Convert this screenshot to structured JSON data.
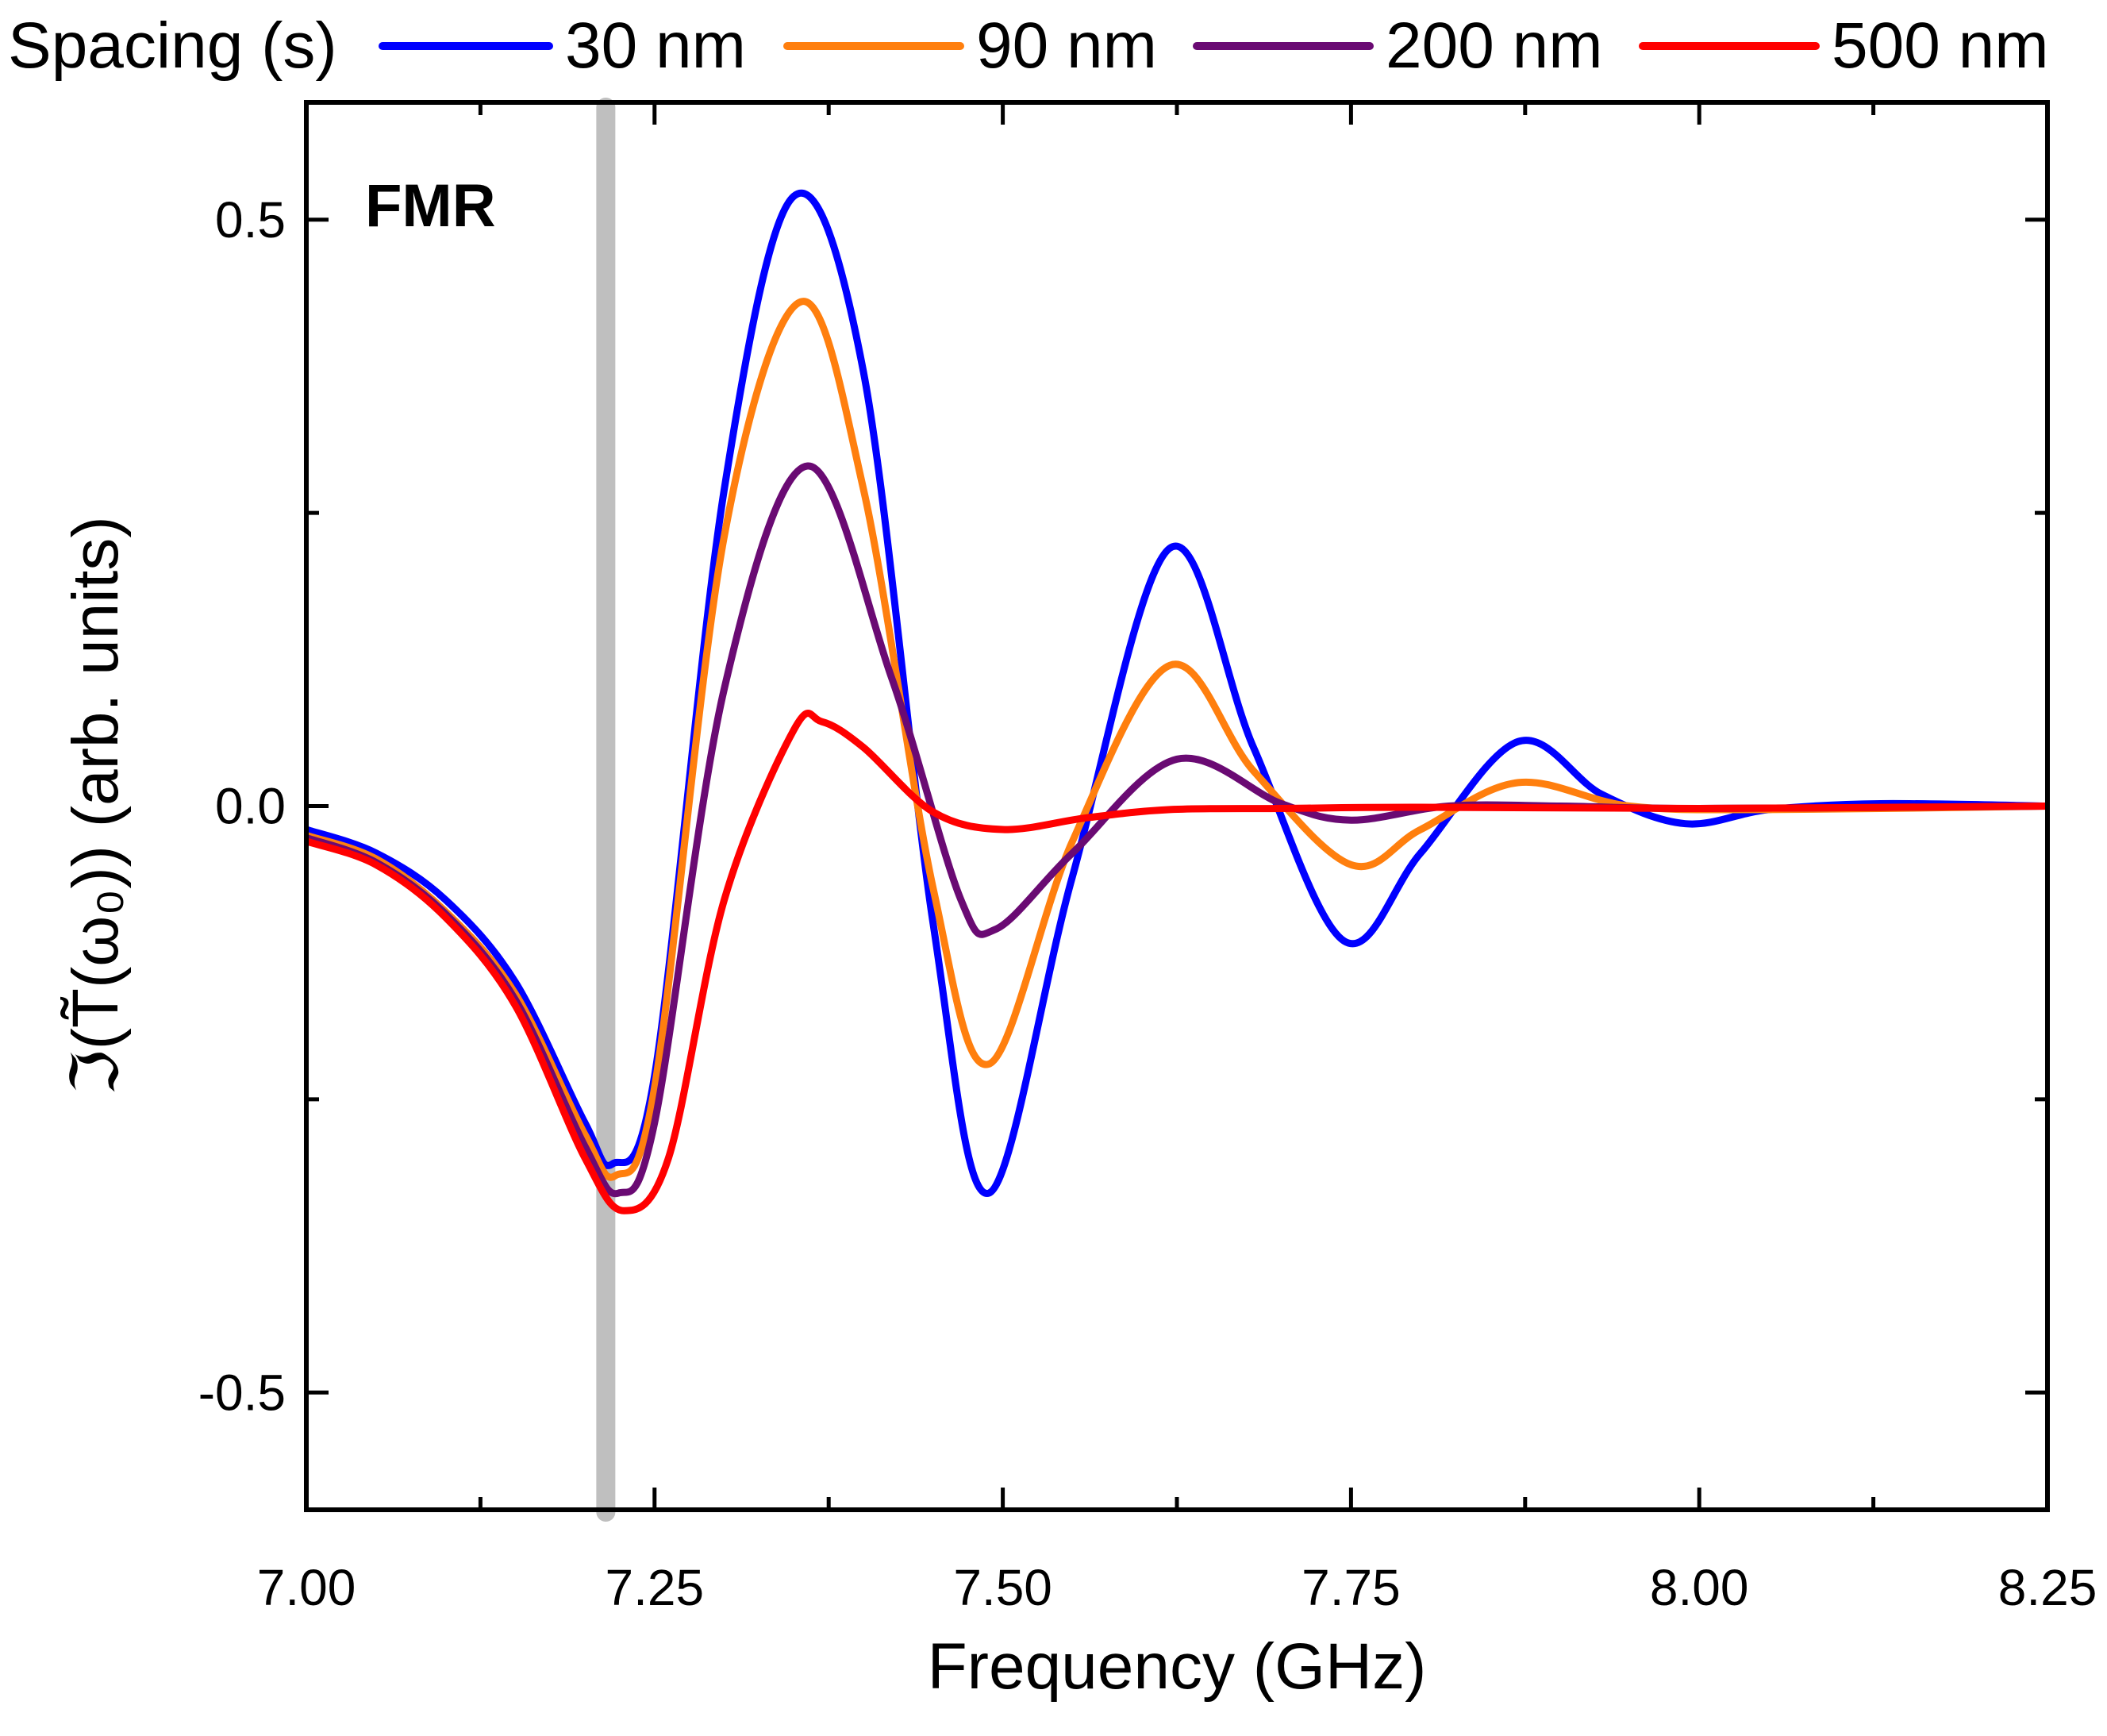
{
  "chart_data": {
    "type": "line",
    "title": "",
    "xlabel": "Frequency (GHz)",
    "ylabel": "ℑ(T̃(ω₀)) (arb. units)",
    "xlim": [
      7.0,
      8.25
    ],
    "ylim": [
      -0.6,
      0.6
    ],
    "x_ticks": [
      "7.00",
      "7.25",
      "7.50",
      "7.75",
      "8.00",
      "8.25"
    ],
    "y_ticks": [
      "0.5",
      "0.0",
      "-0.5"
    ],
    "legend": {
      "title": "Spacing (s)",
      "position": "top"
    },
    "annotation": {
      "text": "FMR",
      "x": 7.215,
      "color": "#bfbfbf"
    },
    "series": [
      {
        "name": "30 nm",
        "color": "#0000ff",
        "x": [
          7.0,
          7.05,
          7.1,
          7.15,
          7.2,
          7.22,
          7.25,
          7.3,
          7.35,
          7.4,
          7.45,
          7.49,
          7.55,
          7.62,
          7.68,
          7.745,
          7.8,
          7.87,
          7.93,
          7.99,
          8.05,
          8.13,
          8.25
        ],
        "y": [
          -0.02,
          -0.04,
          -0.08,
          -0.15,
          -0.27,
          -0.305,
          -0.23,
          0.27,
          0.52,
          0.37,
          -0.1,
          -0.33,
          -0.06,
          0.22,
          0.05,
          -0.115,
          -0.04,
          0.055,
          0.01,
          -0.015,
          -0.003,
          0.002,
          0.0
        ]
      },
      {
        "name": "90 nm",
        "color": "#ff7f0e",
        "x": [
          7.0,
          7.05,
          7.1,
          7.15,
          7.2,
          7.222,
          7.25,
          7.3,
          7.355,
          7.4,
          7.45,
          7.49,
          7.55,
          7.62,
          7.68,
          7.75,
          7.8,
          7.87,
          7.95,
          8.05,
          8.25
        ],
        "y": [
          -0.025,
          -0.045,
          -0.09,
          -0.16,
          -0.28,
          -0.315,
          -0.24,
          0.23,
          0.43,
          0.27,
          -0.07,
          -0.22,
          -0.03,
          0.12,
          0.03,
          -0.05,
          -0.02,
          0.02,
          0.0,
          -0.003,
          0.0
        ]
      },
      {
        "name": "200 nm",
        "color": "#6a0a73",
        "x": [
          7.0,
          7.05,
          7.1,
          7.15,
          7.2,
          7.224,
          7.25,
          7.3,
          7.36,
          7.42,
          7.47,
          7.495,
          7.55,
          7.625,
          7.7,
          7.75,
          7.82,
          7.9,
          8.0,
          8.25
        ],
        "y": [
          -0.027,
          -0.048,
          -0.092,
          -0.165,
          -0.29,
          -0.33,
          -0.27,
          0.1,
          0.29,
          0.11,
          -0.08,
          -0.105,
          -0.04,
          0.04,
          0.002,
          -0.012,
          0.0,
          0.0,
          -0.002,
          0.0
        ]
      },
      {
        "name": "500 nm",
        "color": "#ff0000",
        "x": [
          7.0,
          7.05,
          7.1,
          7.15,
          7.2,
          7.228,
          7.26,
          7.3,
          7.35,
          7.37,
          7.4,
          7.45,
          7.5,
          7.56,
          7.62,
          7.7,
          7.8,
          8.0,
          8.25
        ],
        "y": [
          -0.03,
          -0.05,
          -0.095,
          -0.17,
          -0.3,
          -0.345,
          -0.3,
          -0.08,
          0.065,
          0.072,
          0.05,
          -0.005,
          -0.02,
          -0.01,
          -0.003,
          -0.002,
          -0.001,
          -0.002,
          0.0
        ]
      }
    ]
  }
}
